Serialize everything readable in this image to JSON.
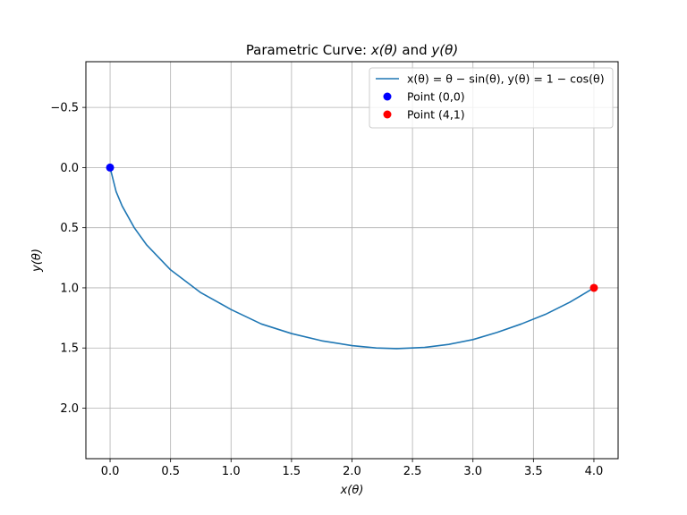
{
  "chart_data": {
    "type": "line",
    "title": "Parametric Curve: x(θ) and y(θ)",
    "xlabel": "x(θ)",
    "ylabel": "y(θ)",
    "xlim": [
      -0.2,
      4.2
    ],
    "ylim": [
      2.42,
      -0.88
    ],
    "y_inverted": true,
    "xticks": [
      0.0,
      0.5,
      1.0,
      1.5,
      2.0,
      2.5,
      3.0,
      3.5,
      4.0
    ],
    "xtick_labels": [
      "0.0",
      "0.5",
      "1.0",
      "1.5",
      "2.0",
      "2.5",
      "3.0",
      "3.5",
      "4.0"
    ],
    "yticks": [
      -0.5,
      0.0,
      0.5,
      1.0,
      1.5,
      2.0
    ],
    "ytick_labels": [
      "−0.5",
      "0.0",
      "0.5",
      "1.0",
      "1.5",
      "2.0"
    ],
    "grid": true,
    "legend_position": "top-right",
    "series": [
      {
        "name": "x(θ) = θ − sin(θ), y(θ) = 1 − cos(θ)",
        "kind": "line",
        "color": "#1f77b4",
        "points": [
          [
            0.0,
            0.0
          ],
          [
            0.05,
            0.2
          ],
          [
            0.1,
            0.32
          ],
          [
            0.2,
            0.5
          ],
          [
            0.3,
            0.64
          ],
          [
            0.5,
            0.85
          ],
          [
            0.75,
            1.04
          ],
          [
            1.0,
            1.18
          ],
          [
            1.25,
            1.3
          ],
          [
            1.5,
            1.38
          ],
          [
            1.75,
            1.44
          ],
          [
            2.0,
            1.48
          ],
          [
            2.2,
            1.5
          ],
          [
            2.37,
            1.505
          ],
          [
            2.6,
            1.495
          ],
          [
            2.8,
            1.47
          ],
          [
            3.0,
            1.43
          ],
          [
            3.2,
            1.37
          ],
          [
            3.4,
            1.3
          ],
          [
            3.6,
            1.22
          ],
          [
            3.8,
            1.12
          ],
          [
            3.9,
            1.06
          ],
          [
            4.0,
            1.0
          ]
        ]
      },
      {
        "name": "Point (0,0)",
        "kind": "marker",
        "color": "#0000ff",
        "points": [
          [
            0.0,
            0.0
          ]
        ]
      },
      {
        "name": "Point (4,1)",
        "kind": "marker",
        "color": "#ff0000",
        "points": [
          [
            4.0,
            1.0
          ]
        ]
      }
    ]
  }
}
